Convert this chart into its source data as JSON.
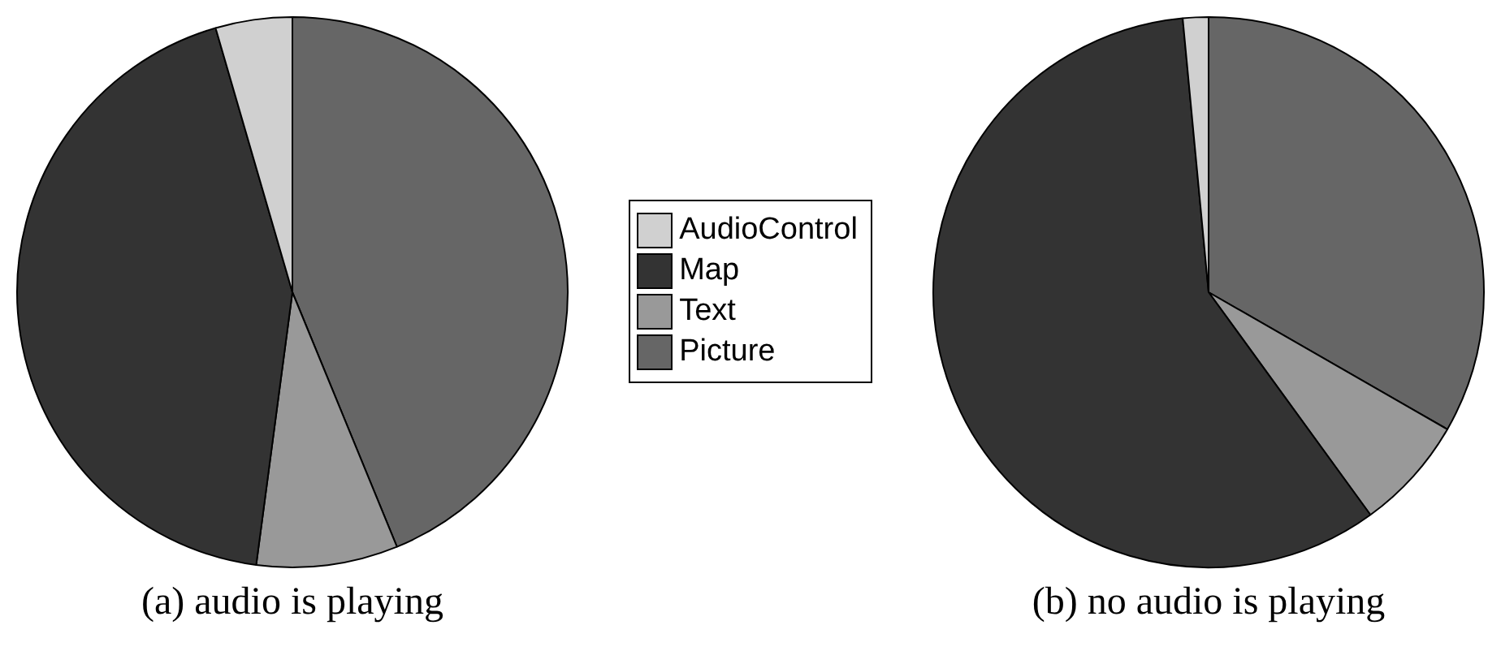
{
  "chart_data": {
    "type": "pie",
    "categories": [
      "AudioControl",
      "Map",
      "Text",
      "Picture"
    ],
    "colors": [
      "#d0d0d0",
      "#333333",
      "#999999",
      "#666666"
    ],
    "legend": "right",
    "series": [
      {
        "values": [
          4.5,
          43.4,
          8.3,
          43.8
        ]
      },
      {
        "values": [
          1.5,
          58.5,
          6.7,
          33.3
        ]
      }
    ],
    "annotations": [
      "(a) audio is playing",
      "(b) no audio is playing"
    ]
  }
}
